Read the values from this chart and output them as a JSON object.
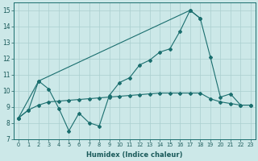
{
  "xlabel": "Humidex (Indice chaleur)",
  "background_color": "#cce8e8",
  "grid_color": "#aacfcf",
  "line_color": "#1a6e6e",
  "xlim": [
    -0.5,
    23.5
  ],
  "ylim": [
    7,
    15.5
  ],
  "xticks": [
    0,
    1,
    2,
    3,
    4,
    5,
    6,
    7,
    8,
    9,
    10,
    11,
    12,
    13,
    14,
    15,
    16,
    17,
    18,
    19,
    20,
    21,
    22,
    23
  ],
  "yticks": [
    7,
    8,
    9,
    10,
    11,
    12,
    13,
    14,
    15
  ],
  "series1_x": [
    0,
    1,
    2,
    3,
    4,
    5,
    6,
    7,
    8,
    9,
    10,
    11,
    12,
    13,
    14,
    15,
    16,
    17,
    18,
    19,
    20,
    21,
    22,
    23
  ],
  "series1_y": [
    8.3,
    8.8,
    10.6,
    10.1,
    8.9,
    7.5,
    8.6,
    8.0,
    7.8,
    9.7,
    10.5,
    10.8,
    11.6,
    11.9,
    12.4,
    12.6,
    13.7,
    15.0,
    14.5,
    12.1,
    9.6,
    9.8,
    9.1,
    9.1
  ],
  "series2_x": [
    0,
    2,
    17,
    18
  ],
  "series2_y": [
    8.3,
    10.6,
    15.0,
    14.5
  ],
  "series3_x": [
    0,
    1,
    2,
    3,
    4,
    5,
    6,
    7,
    8,
    9,
    10,
    11,
    12,
    13,
    14,
    15,
    16,
    17,
    18,
    19,
    20,
    21,
    22,
    23
  ],
  "series3_y": [
    8.3,
    8.8,
    9.1,
    9.3,
    9.35,
    9.4,
    9.45,
    9.5,
    9.55,
    9.6,
    9.65,
    9.7,
    9.75,
    9.8,
    9.85,
    9.85,
    9.85,
    9.85,
    9.85,
    9.5,
    9.3,
    9.2,
    9.1,
    9.1
  ]
}
